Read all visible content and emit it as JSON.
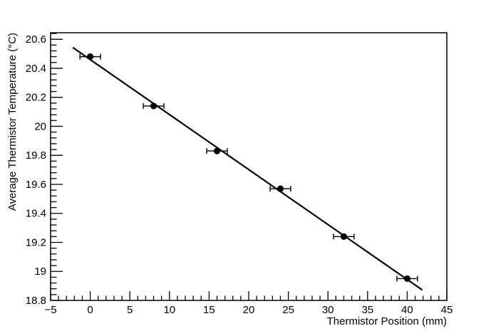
{
  "chart_data": {
    "type": "scatter",
    "title": "",
    "xlabel": "Thermistor Position (mm)",
    "ylabel": "Average Thermistor Temperature (°C)",
    "x": [
      0,
      8,
      16,
      24,
      32,
      40
    ],
    "y": [
      20.48,
      20.14,
      19.83,
      19.57,
      19.24,
      18.95
    ],
    "x_err": [
      1.3,
      1.3,
      1.3,
      1.3,
      1.3,
      1.3
    ],
    "y_err": [
      0,
      0,
      0,
      0,
      0,
      0
    ],
    "fit": {
      "type": "linear",
      "slope": -0.0379,
      "intercept": 20.46,
      "x_start": -2.2,
      "x_end": 41.9
    },
    "xlim": [
      -5,
      45
    ],
    "ylim": [
      18.8,
      20.645
    ],
    "x_tick_major": 5,
    "x_tick_minor": 1,
    "y_tick_major": 0.2,
    "y_tick_minor": 0.04,
    "x_major_tick_labels": [
      "−5",
      "0",
      "5",
      "10",
      "15",
      "20",
      "25",
      "30",
      "35",
      "40",
      "45"
    ],
    "y_major_tick_labels": [
      "18.8",
      "19",
      "19.2",
      "19.4",
      "19.6",
      "19.8",
      "20",
      "20.2",
      "20.4",
      "20.6"
    ],
    "grid": false,
    "legend": null,
    "marker": "filled-circle",
    "colors": {
      "data": "#000000",
      "fit": "#000000",
      "axes": "#000000",
      "background": "#ffffff"
    }
  }
}
